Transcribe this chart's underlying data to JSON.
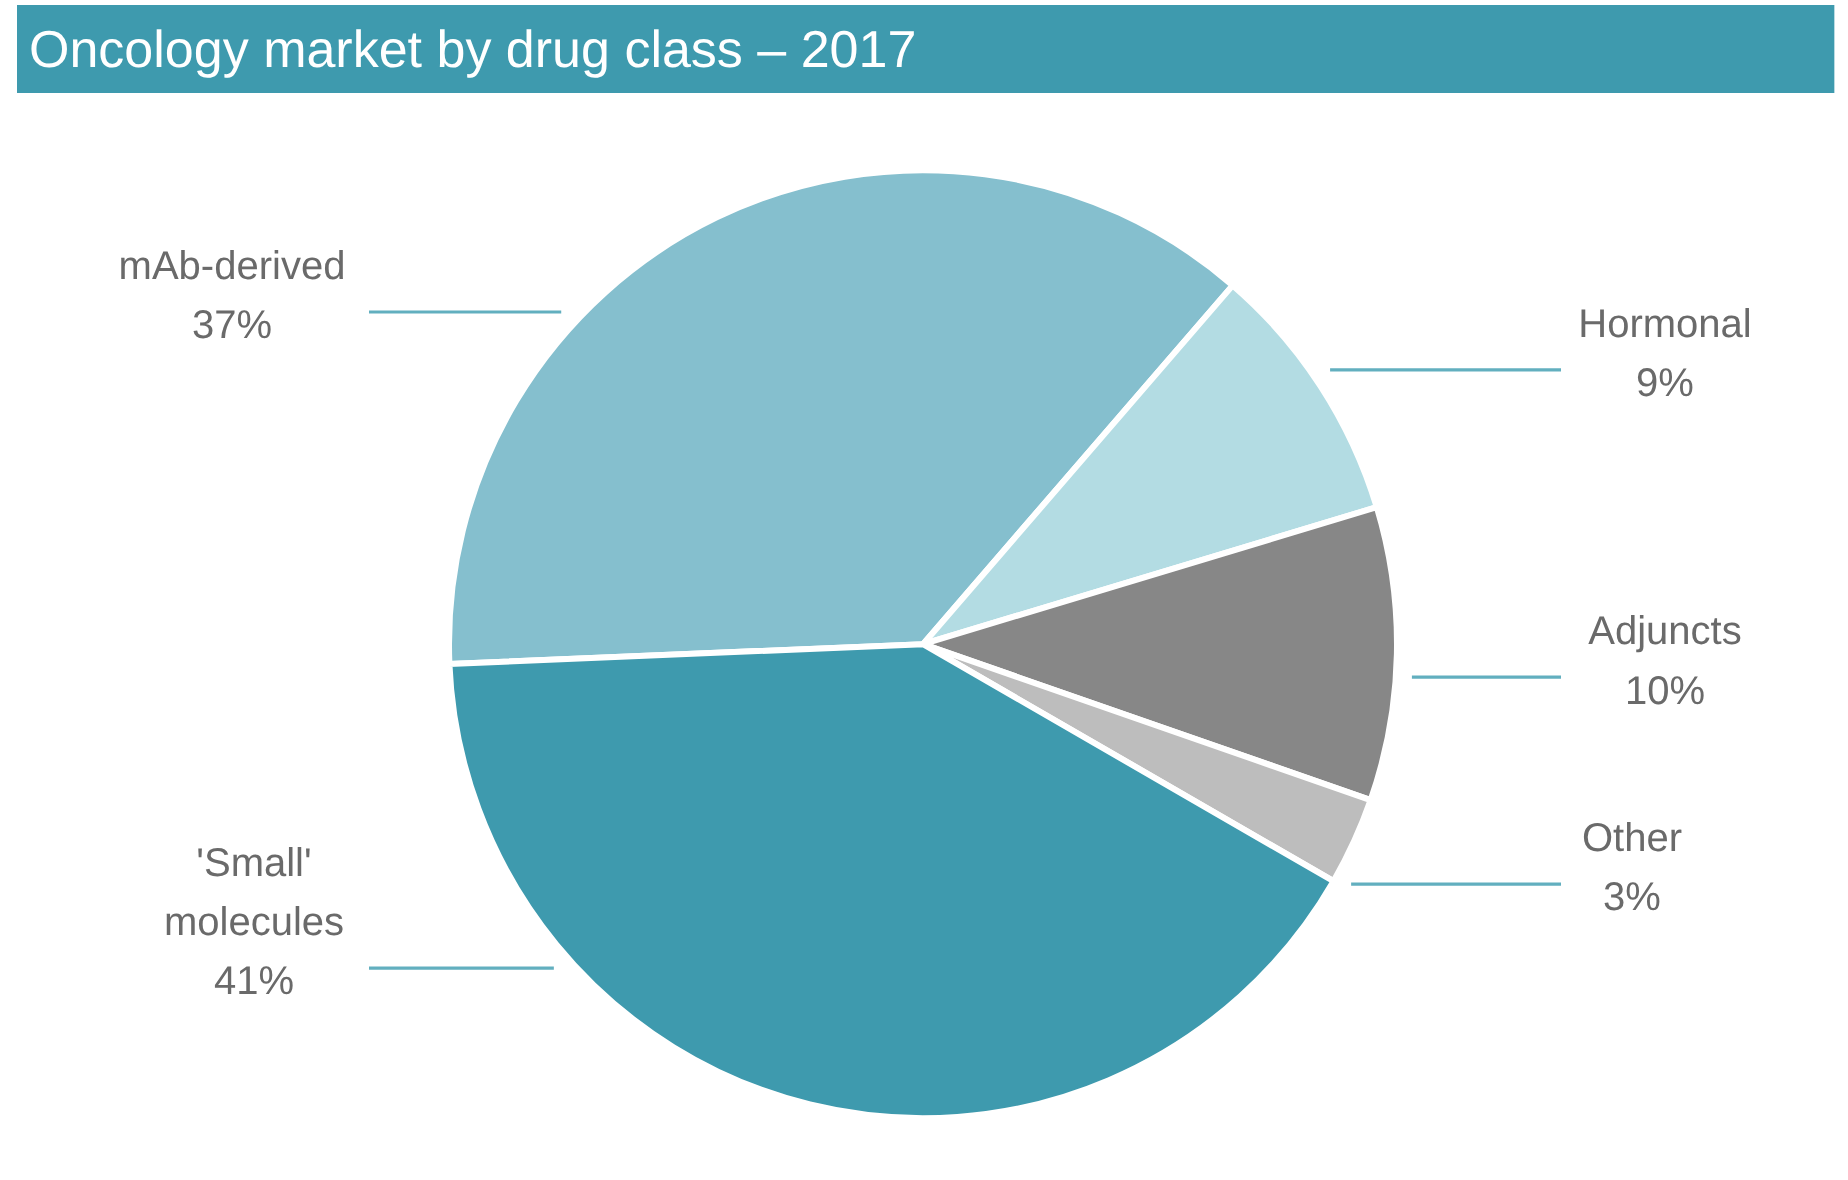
{
  "chart_data": {
    "type": "pie",
    "title": "Oncology market by drug class – 2017",
    "categories": [
      "mAb-derived",
      "Hormonal",
      "Adjuncts",
      "Other",
      "'Small' molecules"
    ],
    "values": [
      37,
      9,
      10,
      3,
      41
    ],
    "colors": [
      "#85bfce",
      "#b3dce3",
      "#878787",
      "#bdbdbd",
      "#3e9aae"
    ],
    "value_labels": [
      "37%",
      "9%",
      "10%",
      "3%",
      "41%"
    ]
  }
}
